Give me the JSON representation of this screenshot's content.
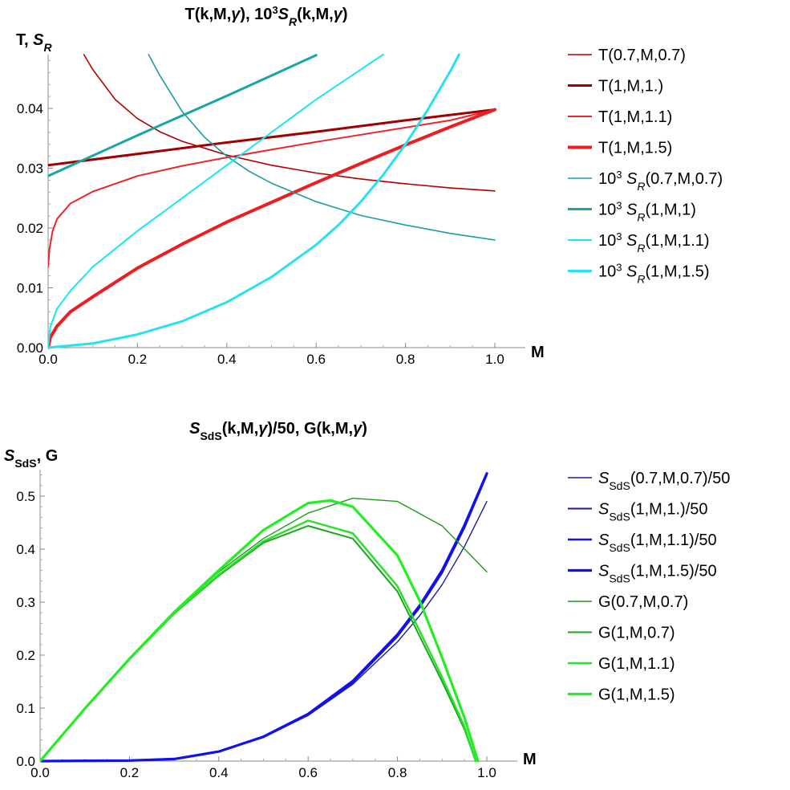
{
  "chart_data": [
    {
      "type": "line",
      "title": "T(k,M,γ), 10³S_R(k,M,γ)",
      "title_parts": {
        "pre": "T(k,M,",
        "gamma": "γ",
        "mid": "), 10",
        "exp": "3",
        "s": "S",
        "sub": "R",
        "post": "(k,M,",
        "gamma2": "γ",
        "end": ")"
      },
      "xlabel": "M",
      "ylabel": "T, S_R",
      "ylabel_parts": {
        "pre": "T, ",
        "s": "S",
        "sub": "R"
      },
      "xlim": [
        0,
        1
      ],
      "ylim": [
        0,
        0.049
      ],
      "xticks": [
        "0.0",
        "0.2",
        "0.4",
        "0.6",
        "0.8",
        "1.0"
      ],
      "yticks": [
        "0.00",
        "0.01",
        "0.02",
        "0.03",
        "0.04"
      ],
      "legend_position": "right",
      "grid": false,
      "series": [
        {
          "name": "T(0.7,M,0.7)",
          "color": "#b00000",
          "width": 1.6,
          "x": [
            0.08,
            0.1,
            0.15,
            0.2,
            0.25,
            0.3,
            0.4,
            0.5,
            0.6,
            0.7,
            0.8,
            0.9,
            1.0
          ],
          "y": [
            0.049,
            0.0465,
            0.0415,
            0.0383,
            0.0361,
            0.0345,
            0.0322,
            0.0305,
            0.0292,
            0.0282,
            0.0274,
            0.0267,
            0.0262
          ]
        },
        {
          "name": "T(1,M,1.)",
          "color": "#a00000",
          "width": 3,
          "x": [
            0.0,
            0.2,
            0.4,
            0.6,
            0.8,
            1.0
          ],
          "y": [
            0.0305,
            0.0324,
            0.0343,
            0.0361,
            0.038,
            0.0398
          ]
        },
        {
          "name": "T(1,M,1.1)",
          "color": "#e8262d",
          "width": 2,
          "x": [
            0.0,
            0.003,
            0.01,
            0.02,
            0.05,
            0.1,
            0.2,
            0.3,
            0.4,
            0.5,
            0.6,
            0.7,
            0.8,
            0.9,
            1.0
          ],
          "y": [
            0.0135,
            0.0165,
            0.0195,
            0.0215,
            0.0241,
            0.0261,
            0.0287,
            0.0304,
            0.0318,
            0.0331,
            0.0344,
            0.0356,
            0.0368,
            0.038,
            0.0398
          ]
        },
        {
          "name": "T(1,M,1.5)",
          "color": "#ef1c20",
          "width": 4,
          "x": [
            0.0,
            0.005,
            0.02,
            0.05,
            0.1,
            0.2,
            0.3,
            0.4,
            0.5,
            0.6,
            0.7,
            0.8,
            0.9,
            1.0
          ],
          "y": [
            0.0,
            0.0017,
            0.0036,
            0.006,
            0.0085,
            0.0133,
            0.0173,
            0.021,
            0.0243,
            0.0276,
            0.0308,
            0.0339,
            0.0369,
            0.0398
          ]
        },
        {
          "name": "10³ S_R(0.7,M,0.7)",
          "color": "#1a9ea0",
          "width": 1.6,
          "x": [
            0.225,
            0.25,
            0.3,
            0.35,
            0.4,
            0.45,
            0.5,
            0.6,
            0.7,
            0.8,
            0.9,
            1.0
          ],
          "y": [
            0.049,
            0.0455,
            0.0395,
            0.0352,
            0.032,
            0.0295,
            0.0275,
            0.0244,
            0.0221,
            0.0205,
            0.0191,
            0.018
          ]
        },
        {
          "name": "10³ S_R(1,M,1)",
          "color": "#17a5a6",
          "width": 3,
          "x": [
            0.0,
            0.1,
            0.2,
            0.3,
            0.4,
            0.5,
            0.6
          ],
          "y": [
            0.0287,
            0.0321,
            0.0355,
            0.0388,
            0.0421,
            0.0455,
            0.0489
          ]
        },
        {
          "name": "10³ S_R(1,M,1.1)",
          "color": "#19e6f0",
          "width": 2,
          "x": [
            0.0,
            0.005,
            0.02,
            0.05,
            0.1,
            0.2,
            0.3,
            0.4,
            0.5,
            0.6,
            0.7,
            0.75
          ],
          "y": [
            0.0,
            0.0035,
            0.0065,
            0.0095,
            0.0135,
            0.0195,
            0.025,
            0.0305,
            0.036,
            0.0415,
            0.0465,
            0.049
          ]
        },
        {
          "name": "10³ S_R(1,M,1.5)",
          "color": "#29e0ee",
          "width": 3,
          "x": [
            0.0,
            0.1,
            0.2,
            0.3,
            0.4,
            0.5,
            0.6,
            0.65,
            0.7,
            0.75,
            0.8,
            0.85,
            0.9,
            0.92
          ],
          "y": [
            0.0,
            0.0007,
            0.0022,
            0.0044,
            0.0076,
            0.0118,
            0.0172,
            0.0205,
            0.0244,
            0.0289,
            0.034,
            0.0398,
            0.0462,
            0.049
          ]
        }
      ]
    },
    {
      "type": "line",
      "title": "S_SdS(k,M,γ)/50, G(k,M,γ)",
      "title_parts": {
        "s": "S",
        "sub": "SdS",
        "pre": "(k,M,",
        "gamma": "γ",
        "mid": ")/50, G(k,M,",
        "gamma2": "γ",
        "end": ")"
      },
      "xlabel": "M",
      "ylabel": "S_SdS, G",
      "ylabel_parts": {
        "s": "S",
        "sub": "SdS",
        "post": ", G"
      },
      "xlim": [
        0,
        1
      ],
      "ylim": [
        0,
        0.55
      ],
      "xticks": [
        "0.0",
        "0.2",
        "0.4",
        "0.6",
        "0.8",
        "1.0"
      ],
      "yticks": [
        "0.0",
        "0.1",
        "0.2",
        "0.3",
        "0.4",
        "0.5"
      ],
      "legend_position": "right",
      "grid": false,
      "series": [
        {
          "name": "S_SdS(0.7,M,0.7)/50",
          "color": "#1c1c9a",
          "width": 1.4,
          "x": [
            0.0,
            0.2,
            0.3,
            0.4,
            0.5,
            0.6,
            0.7,
            0.8,
            0.85,
            0.9,
            0.95,
            1.0
          ],
          "y": [
            0.0,
            0.001,
            0.004,
            0.018,
            0.045,
            0.086,
            0.145,
            0.225,
            0.275,
            0.333,
            0.405,
            0.49
          ]
        },
        {
          "name": "S_SdS(1,M,1.)/50",
          "color": "#1a1aa6",
          "width": 2,
          "x": [
            0.0,
            0.2,
            0.3,
            0.4,
            0.5,
            0.6,
            0.7,
            0.8,
            0.85,
            0.9,
            0.95,
            1.0
          ],
          "y": [
            0.0,
            0.001,
            0.004,
            0.018,
            0.045,
            0.087,
            0.148,
            0.235,
            0.29,
            0.355,
            0.44,
            0.54
          ]
        },
        {
          "name": "S_SdS(1,M,1.1)/50",
          "color": "#1414e6",
          "width": 2.6,
          "x": [
            0.0,
            0.2,
            0.3,
            0.4,
            0.5,
            0.6,
            0.7,
            0.8,
            0.85,
            0.9,
            0.95,
            1.0
          ],
          "y": [
            0.0,
            0.001,
            0.004,
            0.018,
            0.046,
            0.088,
            0.15,
            0.237,
            0.292,
            0.358,
            0.443,
            0.542
          ]
        },
        {
          "name": "S_SdS(1,M,1.5)/50",
          "color": "#1010f0",
          "width": 3.2,
          "x": [
            0.0,
            0.2,
            0.3,
            0.4,
            0.5,
            0.6,
            0.7,
            0.8,
            0.85,
            0.9,
            0.95,
            1.0
          ],
          "y": [
            0.0,
            0.001,
            0.004,
            0.018,
            0.046,
            0.089,
            0.151,
            0.239,
            0.294,
            0.36,
            0.445,
            0.543
          ]
        },
        {
          "name": "G(0.7,M,0.7)",
          "color": "#1d9a1d",
          "width": 1.4,
          "x": [
            0.0,
            0.1,
            0.2,
            0.3,
            0.4,
            0.5,
            0.6,
            0.7,
            0.8,
            0.9,
            1.0
          ],
          "y": [
            0.0,
            0.099,
            0.193,
            0.281,
            0.357,
            0.42,
            0.468,
            0.496,
            0.49,
            0.444,
            0.357
          ]
        },
        {
          "name": "G(1,M,0.7)",
          "color": "#1ea41e",
          "width": 2,
          "x": [
            0.0,
            0.1,
            0.2,
            0.3,
            0.4,
            0.5,
            0.6,
            0.7,
            0.8,
            0.85,
            0.9,
            0.95,
            0.975
          ],
          "y": [
            0.0,
            0.099,
            0.192,
            0.278,
            0.35,
            0.412,
            0.444,
            0.42,
            0.32,
            0.235,
            0.15,
            0.06,
            0.0
          ]
        },
        {
          "name": "G(1,M,1.1)",
          "color": "#27e027",
          "width": 2.4,
          "x": [
            0.0,
            0.1,
            0.2,
            0.3,
            0.4,
            0.5,
            0.6,
            0.7,
            0.8,
            0.85,
            0.9,
            0.95,
            0.975
          ],
          "y": [
            0.0,
            0.099,
            0.192,
            0.279,
            0.352,
            0.415,
            0.454,
            0.43,
            0.33,
            0.245,
            0.158,
            0.065,
            0.0
          ]
        },
        {
          "name": "G(1,M,1.5)",
          "color": "#22ee22",
          "width": 3.2,
          "x": [
            0.0,
            0.1,
            0.2,
            0.3,
            0.4,
            0.5,
            0.6,
            0.65,
            0.7,
            0.8,
            0.85,
            0.9,
            0.95,
            0.98
          ],
          "y": [
            0.0,
            0.099,
            0.193,
            0.281,
            0.36,
            0.436,
            0.487,
            0.492,
            0.48,
            0.388,
            0.302,
            0.195,
            0.082,
            0.0
          ]
        }
      ]
    }
  ]
}
